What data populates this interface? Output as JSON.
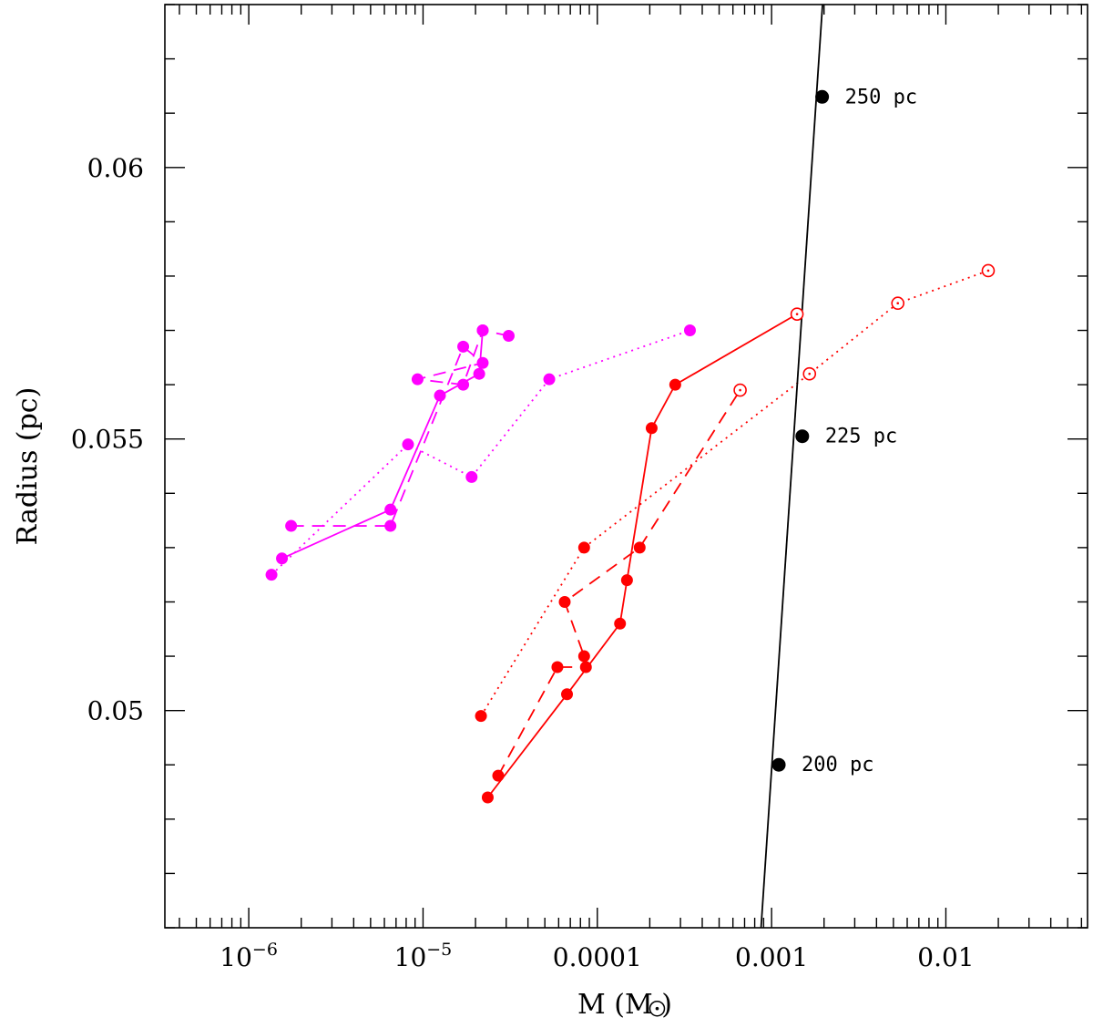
{
  "chart_data": {
    "type": "scatter",
    "title": "",
    "xlabel": "M (M",
    "xlabel_suffix": ")",
    "xlabel_symbol": "sun-symbol",
    "ylabel": "Radius (pc)",
    "x_scale": "log",
    "xlim": [
      3.3e-07,
      0.065
    ],
    "ylim": [
      0.046,
      0.063
    ],
    "x_tick_labels": [
      {
        "value": 1e-06,
        "base": "10",
        "exp": "−6"
      },
      {
        "value": 1e-05,
        "base": "10",
        "exp": "−5"
      },
      {
        "value": 0.0001,
        "text": "0.0001"
      },
      {
        "value": 0.001,
        "text": "0.001"
      },
      {
        "value": 0.01,
        "text": "0.01"
      }
    ],
    "y_tick_labels": [
      {
        "value": 0.05,
        "text": "0.05"
      },
      {
        "value": 0.055,
        "text": "0.055"
      },
      {
        "value": 0.06,
        "text": "0.06"
      }
    ],
    "y_minor_step": 0.001,
    "series": [
      {
        "color": "#ff00ff",
        "dash": "solid",
        "marker": "filled",
        "points": [
          [
            1.55e-06,
            0.0528
          ],
          [
            6.5e-06,
            0.0537
          ],
          [
            1.25e-05,
            0.0558
          ],
          [
            2.1e-05,
            0.0562
          ],
          [
            2.2e-05,
            0.057
          ]
        ]
      },
      {
        "color": "#ff00ff",
        "dash": "dashed",
        "marker": "filled",
        "points": [
          [
            1.75e-06,
            0.0534
          ],
          [
            6.5e-06,
            0.0534
          ],
          [
            1.7e-05,
            0.0567
          ],
          [
            2.2e-05,
            0.0564
          ],
          [
            9.3e-06,
            0.0561
          ],
          [
            1.7e-05,
            0.056
          ],
          [
            2.2e-05,
            0.057
          ],
          [
            3.1e-05,
            0.0569
          ]
        ]
      },
      {
        "color": "#ff00ff",
        "dash": "dotted",
        "marker": "filled",
        "points": [
          [
            1.35e-06,
            0.0525
          ],
          [
            8.2e-06,
            0.0549
          ],
          [
            1.9e-05,
            0.0543
          ],
          [
            5.3e-05,
            0.0561
          ],
          [
            0.00034,
            0.057
          ]
        ]
      },
      {
        "color": "#ff0000",
        "dash": "solid",
        "marker": "filled",
        "points": [
          [
            2.35e-05,
            0.0484
          ],
          [
            6.7e-05,
            0.0503
          ],
          [
            0.000135,
            0.0516
          ],
          [
            0.000148,
            0.0524
          ],
          [
            0.000205,
            0.0552
          ],
          [
            0.00028,
            0.056
          ],
          [
            0.0014,
            0.0573
          ]
        ],
        "open_last": true
      },
      {
        "color": "#ff0000",
        "dash": "dashed",
        "marker": "filled",
        "points": [
          [
            2.7e-05,
            0.0488
          ],
          [
            5.9e-05,
            0.0508
          ],
          [
            8.6e-05,
            0.0508
          ],
          [
            8.4e-05,
            0.051
          ],
          [
            6.5e-05,
            0.052
          ],
          [
            0.000175,
            0.053
          ],
          [
            0.00066,
            0.0559
          ]
        ],
        "open_last": true
      },
      {
        "color": "#ff0000",
        "dash": "dotted",
        "marker": "filled",
        "points": [
          [
            2.15e-05,
            0.0499
          ],
          [
            8.4e-05,
            0.053
          ],
          [
            0.00165,
            0.0562
          ],
          [
            0.0053,
            0.0575
          ],
          [
            0.0175,
            0.0581
          ]
        ],
        "open_last_n": 3
      }
    ],
    "reference_line": {
      "color": "#000000",
      "x": [
        0.00087,
        0.00196
      ],
      "y": [
        0.046,
        0.063
      ]
    },
    "annotations": [
      {
        "x": 0.00195,
        "y": 0.0613,
        "label": "250 pc"
      },
      {
        "x": 0.0015,
        "y": 0.05505,
        "label": "225 pc"
      },
      {
        "x": 0.0011,
        "y": 0.049,
        "label": "200 pc"
      }
    ],
    "grid": false,
    "legend": "none"
  }
}
